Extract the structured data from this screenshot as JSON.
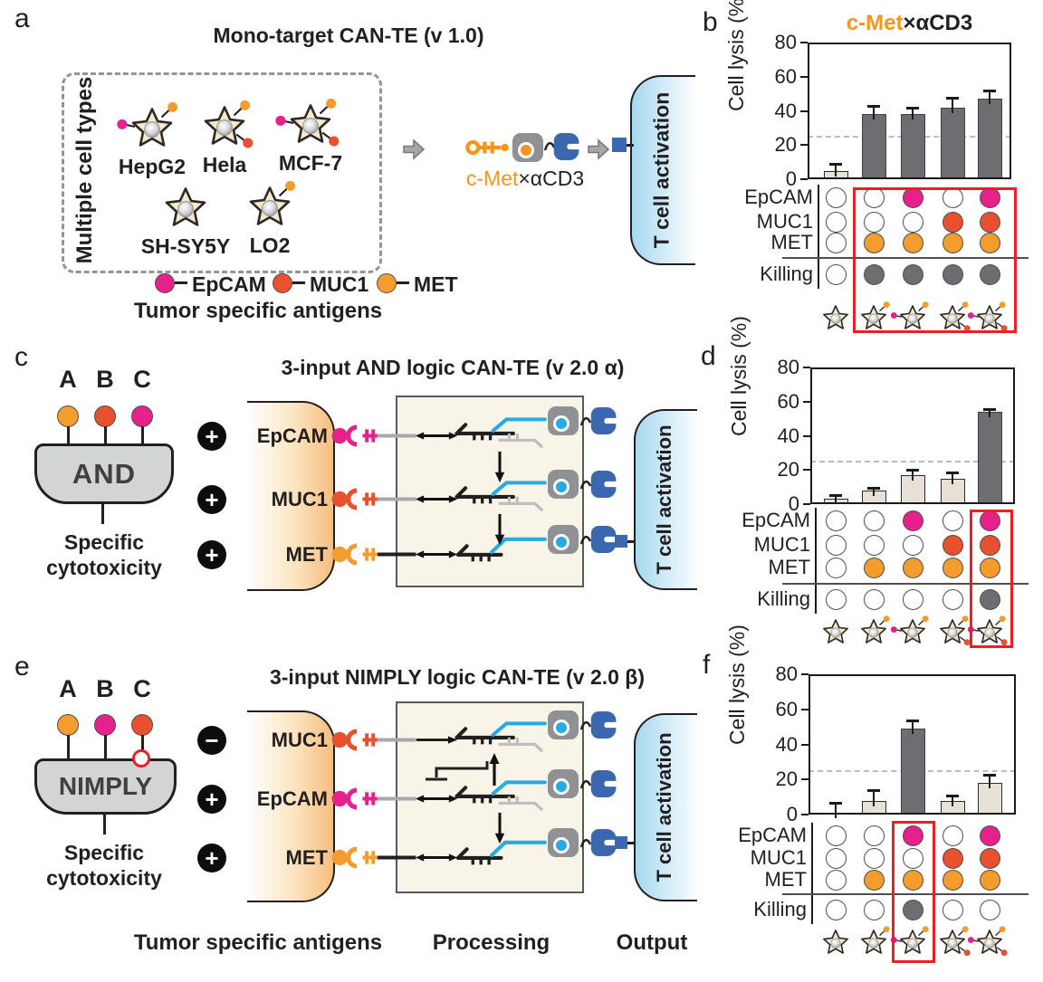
{
  "colors": {
    "epcam": "#E7218C",
    "muc1": "#E8502E",
    "met": "#F49C2D",
    "dark_gray": "#6D6E71",
    "light_bar": "#E8E1D8",
    "blue": "#3A67AE",
    "cyan": "#29ABE2",
    "highlight_red": "#ED1F24",
    "orange_text": "#F7941D"
  },
  "panel_a": {
    "label": "a",
    "title": "Mono-target CAN-TE (v 1.0)",
    "group_label": "Multiple cell types",
    "cells": [
      {
        "name": "HepG2",
        "antigens": [
          "epcam",
          "met"
        ]
      },
      {
        "name": "Hela",
        "antigens": [
          "met",
          "muc1"
        ]
      },
      {
        "name": "MCF-7",
        "antigens": [
          "epcam",
          "met",
          "muc1"
        ]
      },
      {
        "name": "SH-SY5Y",
        "antigens": []
      },
      {
        "name": "LO2",
        "antigens": [
          "met"
        ]
      }
    ],
    "legend": [
      {
        "key": "epcam",
        "label": "EpCAM"
      },
      {
        "key": "muc1",
        "label": "MUC1"
      },
      {
        "key": "met",
        "label": "MET"
      }
    ],
    "caption": "Tumor specific antigens",
    "molecule": {
      "orange": "c-Met",
      "black": "×αCD3"
    },
    "tcell_label": "T cell activation"
  },
  "panel_c": {
    "label": "c",
    "title": "3-input AND logic CAN-TE (v 2.0 α)",
    "inputs": [
      "A",
      "B",
      "C"
    ],
    "input_dot_colors": [
      "met",
      "muc1",
      "epcam"
    ],
    "gate": "AND",
    "caption_line1": "Specific",
    "caption_line2": "cytotoxicity",
    "receptors": [
      {
        "sign": "+",
        "label": "EpCAM",
        "key": "epcam"
      },
      {
        "sign": "+",
        "label": "MUC1",
        "key": "muc1"
      },
      {
        "sign": "+",
        "label": "MET",
        "key": "met"
      }
    ],
    "tcell_label": "T cell activation"
  },
  "panel_e": {
    "label": "e",
    "title": "3-input NIMPLY logic CAN-TE (v 2.0 β)",
    "inputs": [
      "A",
      "B",
      "C"
    ],
    "input_dot_colors": [
      "met",
      "epcam",
      "muc1"
    ],
    "inverted_input": "C",
    "gate": "NIMPLY",
    "caption_line1": "Specific",
    "caption_line2": "cytotoxicity",
    "receptors": [
      {
        "sign": "−",
        "label": "MUC1",
        "key": "muc1"
      },
      {
        "sign": "+",
        "label": "EpCAM",
        "key": "epcam"
      },
      {
        "sign": "+",
        "label": "MET",
        "key": "met"
      }
    ],
    "tcell_label": "T cell activation"
  },
  "footer": {
    "antigens": "Tumor specific antigens",
    "processing": "Processing",
    "output": "Output"
  },
  "chart_data": [
    {
      "id": "b",
      "type": "bar",
      "panel_label": "b",
      "title_orange": "c-Met",
      "title_black": "×αCD3",
      "ylabel": "Cell lysis (%)",
      "ylim": [
        0,
        80
      ],
      "yticks": [
        0,
        20,
        40,
        60,
        80
      ],
      "dashed_threshold": 25,
      "categories": [
        "no antigen",
        "MET",
        "EpCAM+MET",
        "MUC1+MET",
        "EpCAM+MUC1+MET"
      ],
      "values": [
        5,
        38,
        38,
        42,
        47
      ],
      "errors": [
        3,
        4,
        3,
        5,
        4
      ],
      "bar_styles": [
        "light",
        "dark",
        "dark",
        "dark",
        "dark"
      ],
      "matrix_rows": [
        {
          "label": "EpCAM",
          "key": "epcam",
          "dots": [
            0,
            0,
            1,
            0,
            1
          ]
        },
        {
          "label": "MUC1",
          "key": "muc1",
          "dots": [
            0,
            0,
            0,
            1,
            1
          ]
        },
        {
          "label": "MET",
          "key": "met",
          "dots": [
            0,
            1,
            1,
            1,
            1
          ]
        }
      ],
      "killing_row": {
        "label": "Killing",
        "dots": [
          0,
          1,
          1,
          1,
          1
        ]
      },
      "cell_icons": [
        [],
        [
          "met"
        ],
        [
          "epcam",
          "met"
        ],
        [
          "muc1",
          "met"
        ],
        [
          "epcam",
          "muc1",
          "met"
        ]
      ],
      "highlight_cols": [
        1,
        2,
        3,
        4
      ]
    },
    {
      "id": "d",
      "type": "bar",
      "panel_label": "d",
      "ylabel": "Cell lysis (%)",
      "ylim": [
        0,
        80
      ],
      "yticks": [
        0,
        20,
        40,
        60,
        80
      ],
      "dashed_threshold": 25,
      "categories": [
        "no antigen",
        "MET",
        "EpCAM+MET",
        "MUC1+MET",
        "EpCAM+MUC1+MET"
      ],
      "values": [
        3,
        8,
        17,
        15,
        54
      ],
      "errors": [
        1.5,
        1,
        2.5,
        2.5,
        1
      ],
      "bar_styles": [
        "light",
        "light",
        "light",
        "light",
        "dark"
      ],
      "matrix_rows": [
        {
          "label": "EpCAM",
          "key": "epcam",
          "dots": [
            0,
            0,
            1,
            0,
            1
          ]
        },
        {
          "label": "MUC1",
          "key": "muc1",
          "dots": [
            0,
            0,
            0,
            1,
            1
          ]
        },
        {
          "label": "MET",
          "key": "met",
          "dots": [
            0,
            1,
            1,
            1,
            1
          ]
        }
      ],
      "killing_row": {
        "label": "Killing",
        "dots": [
          0,
          0,
          0,
          0,
          1
        ]
      },
      "cell_icons": [
        [],
        [
          "met"
        ],
        [
          "epcam",
          "met"
        ],
        [
          "muc1",
          "met"
        ],
        [
          "epcam",
          "muc1",
          "met"
        ]
      ],
      "highlight_cols": [
        4
      ]
    },
    {
      "id": "f",
      "type": "bar",
      "panel_label": "f",
      "ylabel": "Cell lysis (%)",
      "ylim": [
        0,
        80
      ],
      "yticks": [
        0,
        20,
        40,
        60,
        80
      ],
      "dashed_threshold": 25,
      "categories": [
        "no antigen",
        "MET",
        "EpCAM+MET",
        "MUC1+MET",
        "EpCAM+MUC1+MET"
      ],
      "values": [
        1,
        8,
        49,
        8,
        18
      ],
      "errors": [
        5,
        5,
        4,
        2,
        4
      ],
      "bar_styles": [
        "light",
        "light",
        "dark",
        "light",
        "light"
      ],
      "matrix_rows": [
        {
          "label": "EpCAM",
          "key": "epcam",
          "dots": [
            0,
            0,
            1,
            0,
            1
          ]
        },
        {
          "label": "MUC1",
          "key": "muc1",
          "dots": [
            0,
            0,
            0,
            1,
            1
          ]
        },
        {
          "label": "MET",
          "key": "met",
          "dots": [
            0,
            1,
            1,
            1,
            1
          ]
        }
      ],
      "killing_row": {
        "label": "Killing",
        "dots": [
          0,
          0,
          1,
          0,
          0
        ]
      },
      "cell_icons": [
        [],
        [
          "met"
        ],
        [
          "epcam",
          "met"
        ],
        [
          "muc1",
          "met"
        ],
        [
          "epcam",
          "muc1",
          "met"
        ]
      ],
      "highlight_cols": [
        2
      ]
    }
  ]
}
